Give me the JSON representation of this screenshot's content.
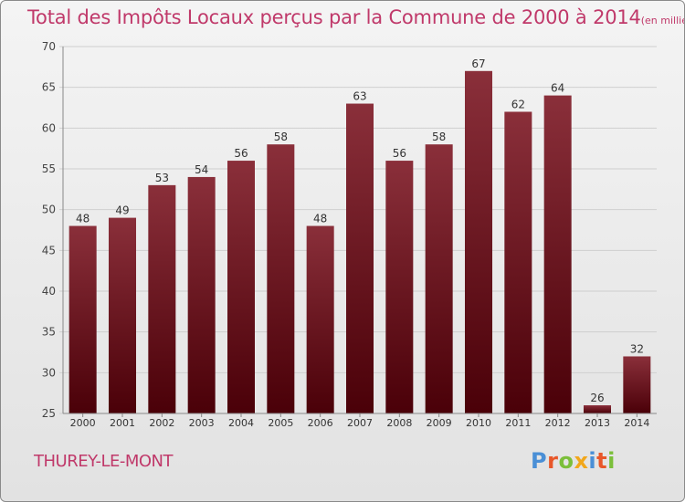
{
  "title": "Total des Impôts Locaux perçus par la Commune de 2000 à 2014",
  "unit_label": "(en milliers d'€)",
  "commune": "THUREY-LE-MONT",
  "logo": {
    "text": "Proxiti",
    "letter_colors": [
      "#4a8fd6",
      "#e8572a",
      "#7bbf3a",
      "#f2a71b",
      "#4a8fd6",
      "#e8572a",
      "#7bbf3a"
    ]
  },
  "colors": {
    "title": "#c0396a",
    "bar_top": "#8a2f3a",
    "bar_bottom": "#4a0008"
  },
  "chart_data": {
    "type": "bar",
    "categories": [
      "2000",
      "2001",
      "2002",
      "2003",
      "2004",
      "2005",
      "2006",
      "2007",
      "2008",
      "2009",
      "2010",
      "2011",
      "2012",
      "2013",
      "2014"
    ],
    "values": [
      48,
      49,
      53,
      54,
      56,
      58,
      48,
      63,
      56,
      58,
      67,
      62,
      64,
      26,
      32
    ],
    "ylim": [
      25,
      70
    ],
    "yticks": [
      25,
      30,
      35,
      40,
      45,
      50,
      55,
      60,
      65,
      70
    ],
    "grid": true
  }
}
